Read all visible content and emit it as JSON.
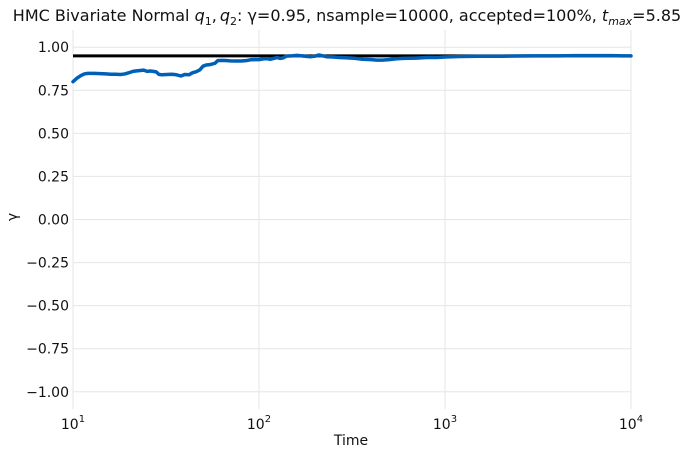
{
  "chart_data": {
    "type": "line",
    "title": {
      "prefix": "HMC Bivariate Normal ",
      "q1_base": "q",
      "q1_sub": "1",
      "sep": ",",
      "q2_base": "q",
      "q2_sub": "2",
      "rest": ": γ=0.95, nsample=10000, accepted=100%, ",
      "t_base": "t",
      "t_sub": "max",
      "t_value": "=5.85"
    },
    "xlabel": "Time",
    "ylabel": "γ",
    "xscale": "log",
    "xlim": [
      10,
      10000
    ],
    "ylim": [
      -1.1,
      1.1
    ],
    "grid": true,
    "x_ticks": [
      {
        "value": 10,
        "base": "10",
        "exp": "1"
      },
      {
        "value": 100,
        "base": "10",
        "exp": "2"
      },
      {
        "value": 1000,
        "base": "10",
        "exp": "3"
      },
      {
        "value": 10000,
        "base": "10",
        "exp": "4"
      }
    ],
    "y_ticks": [
      {
        "value": 1.0,
        "label": "1.00"
      },
      {
        "value": 0.75,
        "label": "0.75"
      },
      {
        "value": 0.5,
        "label": "0.50"
      },
      {
        "value": 0.25,
        "label": "0.25"
      },
      {
        "value": 0.0,
        "label": "0.00"
      },
      {
        "value": -0.25,
        "label": "−0.25"
      },
      {
        "value": -0.5,
        "label": "−0.50"
      },
      {
        "value": -0.75,
        "label": "−0.75"
      },
      {
        "value": -1.0,
        "label": "−1.00"
      }
    ],
    "reference_line": {
      "y": 0.95,
      "color": "#000000"
    },
    "series": [
      {
        "color": "#0060b8",
        "points": [
          [
            10,
            0.8
          ],
          [
            10.5,
            0.82
          ],
          [
            11,
            0.835
          ],
          [
            11.5,
            0.845
          ],
          [
            12,
            0.848
          ],
          [
            13,
            0.848
          ],
          [
            14,
            0.847
          ],
          [
            15,
            0.845
          ],
          [
            16,
            0.843
          ],
          [
            17,
            0.843
          ],
          [
            18,
            0.842
          ],
          [
            19,
            0.845
          ],
          [
            20,
            0.852
          ],
          [
            21,
            0.86
          ],
          [
            22,
            0.863
          ],
          [
            23,
            0.865
          ],
          [
            24,
            0.867
          ],
          [
            25,
            0.86
          ],
          [
            26,
            0.862
          ],
          [
            27,
            0.86
          ],
          [
            28,
            0.857
          ],
          [
            29,
            0.842
          ],
          [
            30,
            0.84
          ],
          [
            32,
            0.842
          ],
          [
            34,
            0.843
          ],
          [
            36,
            0.84
          ],
          [
            38,
            0.833
          ],
          [
            40,
            0.842
          ],
          [
            42,
            0.84
          ],
          [
            44,
            0.852
          ],
          [
            46,
            0.858
          ],
          [
            48,
            0.868
          ],
          [
            50,
            0.89
          ],
          [
            52,
            0.897
          ],
          [
            55,
            0.9
          ],
          [
            58,
            0.907
          ],
          [
            60,
            0.922
          ],
          [
            63,
            0.924
          ],
          [
            66,
            0.923
          ],
          [
            70,
            0.921
          ],
          [
            75,
            0.92
          ],
          [
            80,
            0.92
          ],
          [
            85,
            0.922
          ],
          [
            90,
            0.927
          ],
          [
            95,
            0.928
          ],
          [
            100,
            0.928
          ],
          [
            105,
            0.932
          ],
          [
            110,
            0.934
          ],
          [
            115,
            0.93
          ],
          [
            120,
            0.935
          ],
          [
            125,
            0.94
          ],
          [
            130,
            0.935
          ],
          [
            135,
            0.938
          ],
          [
            140,
            0.948
          ],
          [
            150,
            0.95
          ],
          [
            160,
            0.953
          ],
          [
            170,
            0.95
          ],
          [
            180,
            0.947
          ],
          [
            190,
            0.945
          ],
          [
            200,
            0.948
          ],
          [
            210,
            0.955
          ],
          [
            220,
            0.95
          ],
          [
            230,
            0.945
          ],
          [
            250,
            0.943
          ],
          [
            270,
            0.94
          ],
          [
            300,
            0.938
          ],
          [
            330,
            0.935
          ],
          [
            360,
            0.93
          ],
          [
            400,
            0.928
          ],
          [
            430,
            0.925
          ],
          [
            460,
            0.925
          ],
          [
            500,
            0.928
          ],
          [
            550,
            0.933
          ],
          [
            600,
            0.935
          ],
          [
            700,
            0.937
          ],
          [
            800,
            0.94
          ],
          [
            900,
            0.94
          ],
          [
            1000,
            0.943
          ],
          [
            1200,
            0.946
          ],
          [
            1500,
            0.948
          ],
          [
            2000,
            0.948
          ],
          [
            2500,
            0.949
          ],
          [
            3000,
            0.95
          ],
          [
            4000,
            0.95
          ],
          [
            5000,
            0.951
          ],
          [
            6000,
            0.951
          ],
          [
            7000,
            0.951
          ],
          [
            8000,
            0.951
          ],
          [
            9000,
            0.95
          ],
          [
            10000,
            0.95
          ]
        ]
      }
    ]
  }
}
